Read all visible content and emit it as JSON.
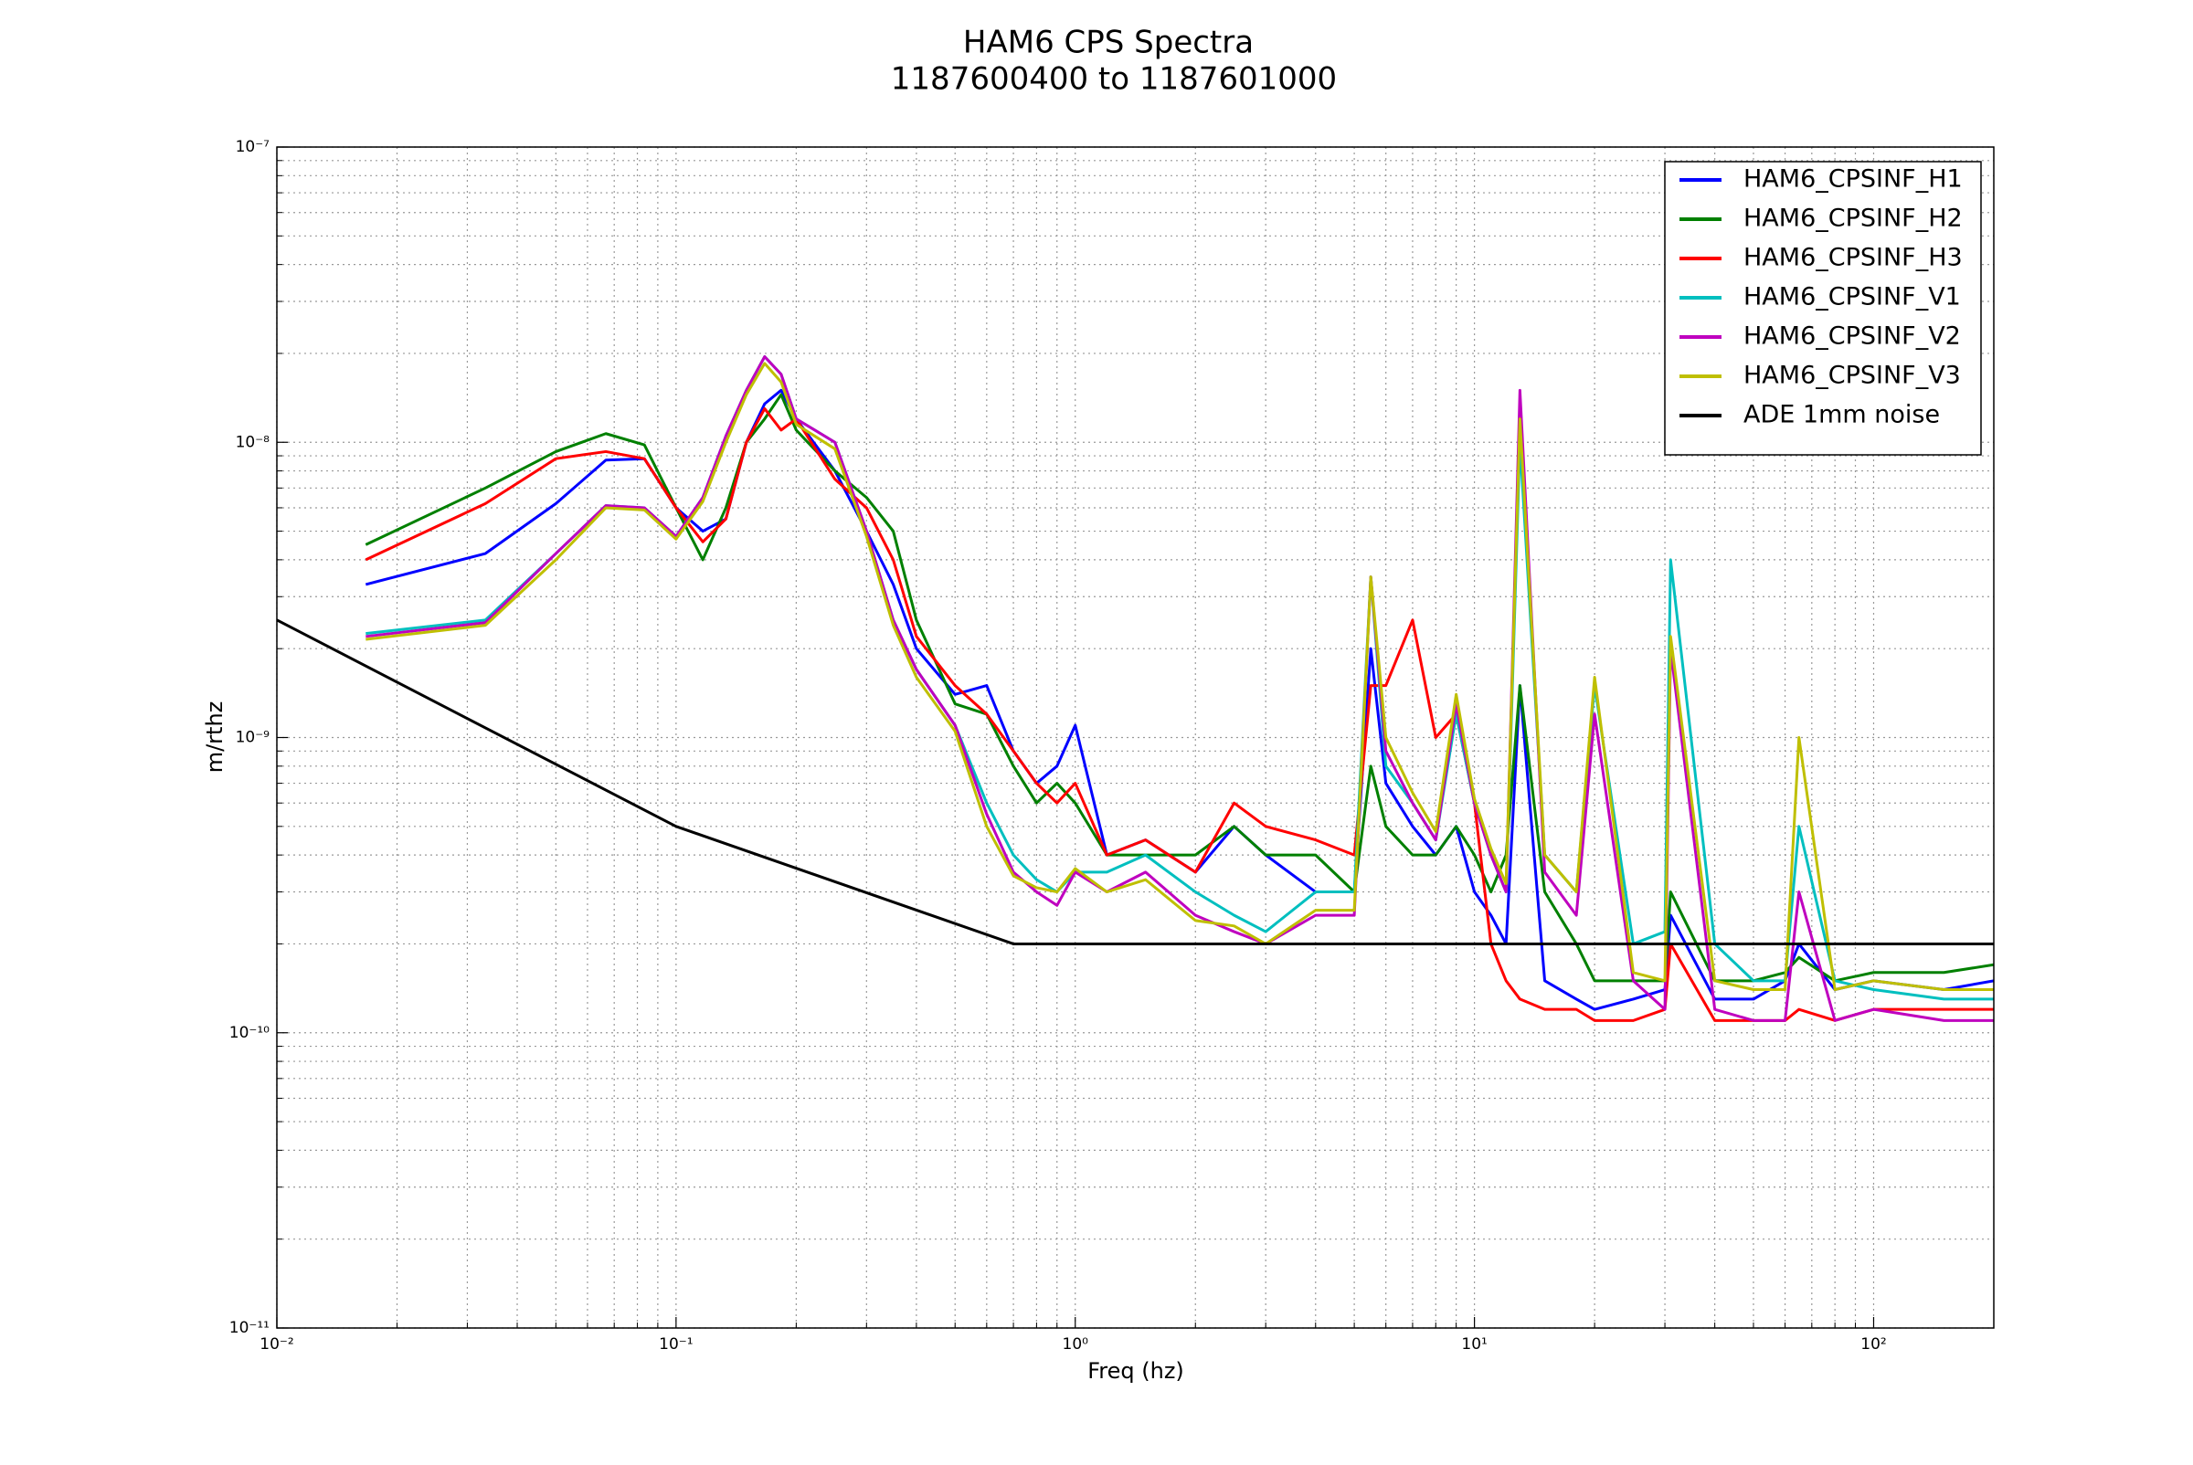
{
  "chart_data": {
    "type": "line",
    "title": "HAM6 CPS Spectra",
    "subtitle": "1187600400 to 1187601000",
    "xlabel": "Freq (hz)",
    "ylabel": "m/rthz",
    "xscale": "log",
    "yscale": "log",
    "grid": true,
    "legend": "upper right",
    "xlim": [
      0.01,
      200
    ],
    "ylim": [
      1e-11,
      1e-07
    ],
    "xticks": [
      {
        "value": 0.01,
        "label": "10⁻²"
      },
      {
        "value": 0.1,
        "label": "10⁻¹"
      },
      {
        "value": 1,
        "label": "10⁰"
      },
      {
        "value": 10,
        "label": "10¹"
      },
      {
        "value": 100,
        "label": "10²"
      }
    ],
    "yticks": [
      {
        "value": 1e-11,
        "label": "10⁻¹¹"
      },
      {
        "value": 1e-10,
        "label": "10⁻¹⁰"
      },
      {
        "value": 1e-09,
        "label": "10⁻⁹"
      },
      {
        "value": 1e-08,
        "label": "10⁻⁸"
      },
      {
        "value": 1e-07,
        "label": "10⁻⁷"
      }
    ],
    "xminorticks": [
      0.02,
      0.03,
      0.04,
      0.05,
      0.06,
      0.07,
      0.08,
      0.09,
      0.2,
      0.3,
      0.4,
      0.5,
      0.6,
      0.7,
      0.8,
      0.9,
      2,
      3,
      4,
      5,
      6,
      7,
      8,
      9,
      20,
      30,
      40,
      50,
      60,
      70,
      80,
      90
    ],
    "yminorticks": [
      2e-11,
      3e-11,
      4e-11,
      5e-11,
      6e-11,
      7e-11,
      8e-11,
      9e-11,
      2e-10,
      3e-10,
      4e-10,
      5e-10,
      6e-10,
      7e-10,
      8e-10,
      9e-10,
      2e-09,
      3e-09,
      4e-09,
      5e-09,
      6e-09,
      7e-09,
      8e-09,
      9e-09,
      2e-08,
      3e-08,
      4e-08,
      5e-08,
      6e-08,
      7e-08,
      8e-08,
      9e-08
    ],
    "x": [
      0.0167,
      0.0333,
      0.05,
      0.0667,
      0.0833,
      0.1,
      0.1167,
      0.1333,
      0.15,
      0.1667,
      0.1833,
      0.2,
      0.25,
      0.3,
      0.35,
      0.4,
      0.5,
      0.6,
      0.7,
      0.8,
      0.9,
      1,
      1.2,
      1.5,
      2,
      2.5,
      3,
      4,
      5,
      5.5,
      6,
      7,
      8,
      9,
      10,
      11,
      12,
      13,
      15,
      18,
      20,
      25,
      30,
      31,
      40,
      50,
      60,
      65,
      80,
      100,
      150,
      200
    ],
    "series": [
      {
        "name": "HAM6_CPSINF_H1",
        "color": "#0000ff",
        "values": [
          3.3e-09,
          4.2e-09,
          6.2e-09,
          8.7e-09,
          8.8e-09,
          6e-09,
          5e-09,
          5.5e-09,
          1e-08,
          1.35e-08,
          1.5e-08,
          1.2e-08,
          8e-09,
          5e-09,
          3.3e-09,
          2e-09,
          1.4e-09,
          1.5e-09,
          9e-10,
          7e-10,
          8e-10,
          1.1e-09,
          4e-10,
          4.5e-10,
          3.5e-10,
          5e-10,
          4e-10,
          3e-10,
          3e-10,
          2e-09,
          7e-10,
          5e-10,
          4e-10,
          5e-10,
          3e-10,
          2.5e-10,
          2e-10,
          1.5e-09,
          1.5e-10,
          1.3e-10,
          1.2e-10,
          1.3e-10,
          1.4e-10,
          2.5e-10,
          1.3e-10,
          1.3e-10,
          1.5e-10,
          2e-10,
          1.4e-10,
          1.5e-10,
          1.4e-10,
          1.5e-10
        ]
      },
      {
        "name": "HAM6_CPSINF_H2",
        "color": "#008000",
        "values": [
          4.5e-09,
          7e-09,
          9.3e-09,
          1.07e-08,
          9.8e-09,
          6e-09,
          4e-09,
          6e-09,
          1e-08,
          1.2e-08,
          1.45e-08,
          1.1e-08,
          8e-09,
          6.5e-09,
          5e-09,
          2.5e-09,
          1.3e-09,
          1.2e-09,
          8e-10,
          6e-10,
          7e-10,
          6e-10,
          4e-10,
          4e-10,
          4e-10,
          5e-10,
          4e-10,
          4e-10,
          3e-10,
          8e-10,
          5e-10,
          4e-10,
          4e-10,
          5e-10,
          4e-10,
          3e-10,
          4e-10,
          1.5e-09,
          3e-10,
          2e-10,
          1.5e-10,
          1.5e-10,
          1.5e-10,
          3e-10,
          1.5e-10,
          1.5e-10,
          1.6e-10,
          1.8e-10,
          1.5e-10,
          1.6e-10,
          1.6e-10,
          1.7e-10
        ]
      },
      {
        "name": "HAM6_CPSINF_H3",
        "color": "#ff0000",
        "values": [
          4e-09,
          6.2e-09,
          8.8e-09,
          9.3e-09,
          8.8e-09,
          6e-09,
          4.6e-09,
          5.5e-09,
          1e-08,
          1.3e-08,
          1.1e-08,
          1.2e-08,
          7.5e-09,
          6e-09,
          4e-09,
          2.2e-09,
          1.5e-09,
          1.2e-09,
          9e-10,
          7e-10,
          6e-10,
          7e-10,
          4e-10,
          4.5e-10,
          3.5e-10,
          6e-10,
          5e-10,
          4.5e-10,
          4e-10,
          1.5e-09,
          1.5e-09,
          2.5e-09,
          1e-09,
          1.2e-09,
          6e-10,
          2e-10,
          1.5e-10,
          1.3e-10,
          1.2e-10,
          1.2e-10,
          1.1e-10,
          1.1e-10,
          1.2e-10,
          2e-10,
          1.1e-10,
          1.1e-10,
          1.1e-10,
          1.2e-10,
          1.1e-10,
          1.2e-10,
          1.2e-10,
          1.2e-10
        ]
      },
      {
        "name": "HAM6_CPSINF_V1",
        "color": "#00bfbf",
        "values": [
          2.25e-09,
          2.5e-09,
          4.2e-09,
          6.1e-09,
          6e-09,
          4.8e-09,
          6.5e-09,
          1.05e-08,
          1.5e-08,
          1.95e-08,
          1.7e-08,
          1.2e-08,
          1e-08,
          5e-09,
          2.5e-09,
          1.7e-09,
          1.1e-09,
          6e-10,
          4e-10,
          3.3e-10,
          3e-10,
          3.5e-10,
          3.5e-10,
          4e-10,
          3e-10,
          2.5e-10,
          2.2e-10,
          3e-10,
          3e-10,
          3.5e-09,
          8e-10,
          6e-10,
          4.5e-10,
          1.2e-09,
          6e-10,
          4e-10,
          3e-10,
          1e-08,
          4e-10,
          3e-10,
          1.5e-09,
          2e-10,
          2.2e-10,
          4e-09,
          2e-10,
          1.5e-10,
          1.5e-10,
          5e-10,
          1.5e-10,
          1.4e-10,
          1.3e-10,
          1.3e-10
        ]
      },
      {
        "name": "HAM6_CPSINF_V2",
        "color": "#bf00bf",
        "values": [
          2.2e-09,
          2.45e-09,
          4.2e-09,
          6.1e-09,
          6e-09,
          4.8e-09,
          6.5e-09,
          1.05e-08,
          1.5e-08,
          1.95e-08,
          1.7e-08,
          1.2e-08,
          1e-08,
          5e-09,
          2.5e-09,
          1.7e-09,
          1.1e-09,
          5.5e-10,
          3.5e-10,
          3e-10,
          2.7e-10,
          3.5e-10,
          3e-10,
          3.5e-10,
          2.5e-10,
          2.2e-10,
          2e-10,
          2.5e-10,
          2.5e-10,
          3.5e-09,
          9e-10,
          6e-10,
          4.5e-10,
          1.3e-09,
          6e-10,
          4e-10,
          3e-10,
          1.5e-08,
          3.5e-10,
          2.5e-10,
          1.2e-09,
          1.5e-10,
          1.2e-10,
          2e-09,
          1.2e-10,
          1.1e-10,
          1.1e-10,
          3e-10,
          1.1e-10,
          1.2e-10,
          1.1e-10,
          1.1e-10
        ]
      },
      {
        "name": "HAM6_CPSINF_V3",
        "color": "#bfbf00",
        "values": [
          2.15e-09,
          2.4e-09,
          4e-09,
          6e-09,
          5.9e-09,
          4.7e-09,
          6.3e-09,
          1e-08,
          1.45e-08,
          1.85e-08,
          1.6e-08,
          1.15e-08,
          9.5e-09,
          4.8e-09,
          2.4e-09,
          1.6e-09,
          1.05e-09,
          5e-10,
          3.4e-10,
          3.1e-10,
          3e-10,
          3.6e-10,
          3e-10,
          3.3e-10,
          2.4e-10,
          2.3e-10,
          2e-10,
          2.6e-10,
          2.6e-10,
          3.5e-09,
          1e-09,
          6.5e-10,
          4.8e-10,
          1.4e-09,
          6.2e-10,
          4.2e-10,
          3.2e-10,
          1.2e-08,
          4e-10,
          3e-10,
          1.6e-09,
          1.6e-10,
          1.5e-10,
          2.2e-09,
          1.5e-10,
          1.4e-10,
          1.4e-10,
          1e-09,
          1.4e-10,
          1.5e-10,
          1.4e-10,
          1.4e-10
        ]
      },
      {
        "name": "ADE 1mm noise",
        "color": "#000000",
        "x": [
          0.01,
          0.1,
          0.7,
          200
        ],
        "values": [
          2.5e-09,
          5e-10,
          2e-10,
          2e-10
        ]
      }
    ]
  }
}
